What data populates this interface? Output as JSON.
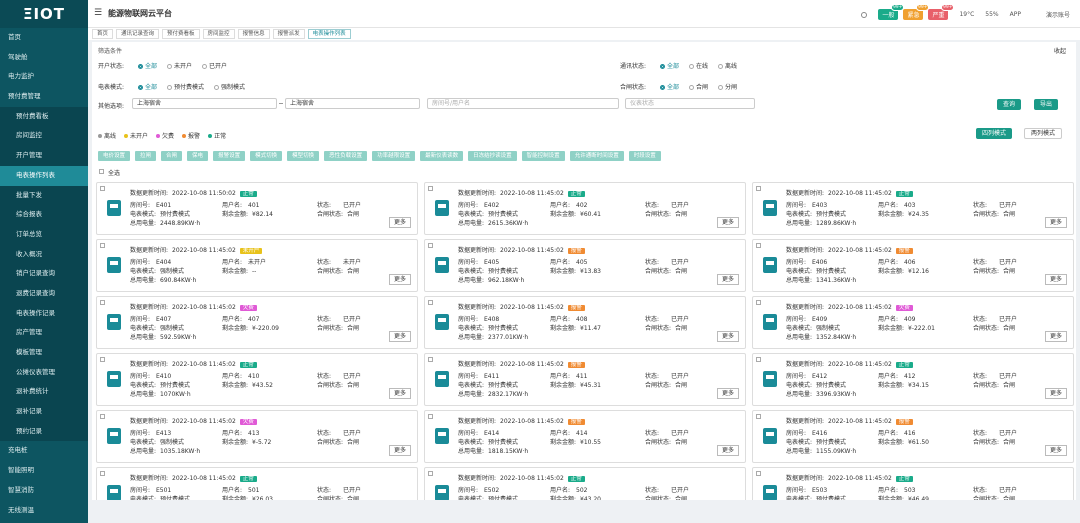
{
  "logo": "ΞIOT",
  "header": {
    "title": "能源物联网云平台",
    "alerts": [
      {
        "label": "一般",
        "count": "99+",
        "color": "#1aab8a"
      },
      {
        "label": "紧急",
        "count": "99+",
        "color": "#f0a030"
      },
      {
        "label": "严重",
        "count": "99+",
        "color": "#e8606a"
      }
    ],
    "weather": "19°C",
    "humidity": "55%",
    "app": "APP",
    "user": "演示账号"
  },
  "sidebar": {
    "items": [
      {
        "label": "首页"
      },
      {
        "label": "驾驶舱"
      },
      {
        "label": "电力监护"
      },
      {
        "label": "预付费管理",
        "children": [
          {
            "label": "预付费看板"
          },
          {
            "label": "房间监控"
          },
          {
            "label": "开户管理"
          },
          {
            "label": "电表操作列表",
            "active": true
          },
          {
            "label": "批量下发"
          },
          {
            "label": "综合报表"
          },
          {
            "label": "订单总览"
          },
          {
            "label": "收入概况"
          },
          {
            "label": "销户记录查询"
          },
          {
            "label": "退费记录查询"
          },
          {
            "label": "电表操作记录"
          },
          {
            "label": "房产管理"
          },
          {
            "label": "模板管理"
          },
          {
            "label": "公摊仪表管理"
          },
          {
            "label": "退补费统计"
          },
          {
            "label": "退补记录"
          },
          {
            "label": "预约记录"
          }
        ]
      },
      {
        "label": "充电桩"
      },
      {
        "label": "智能照明"
      },
      {
        "label": "智慧消防"
      },
      {
        "label": "无线测温"
      }
    ]
  },
  "tabs": [
    {
      "label": "首页"
    },
    {
      "label": "通讯记录查询"
    },
    {
      "label": "预付费看板"
    },
    {
      "label": "房间监控"
    },
    {
      "label": "报警信息"
    },
    {
      "label": "报警派发"
    },
    {
      "label": "电表操作列表",
      "active": true
    }
  ],
  "filters": {
    "title": "筛选条件",
    "collapse": "收起",
    "rows": [
      {
        "label": "开户状态:",
        "options": [
          "全部",
          "未开户",
          "已开户"
        ]
      },
      {
        "label": "通讯状态:",
        "options": [
          "全部",
          "在线",
          "离线"
        ]
      },
      {
        "label": "电表模式:",
        "options": [
          "全部",
          "预付费模式",
          "强制模式"
        ]
      },
      {
        "label": "合闸状态:",
        "options": [
          "全部",
          "合闸",
          "分闸"
        ]
      }
    ],
    "other_label": "其他选项:",
    "select1": "上海宿舍",
    "select2": "上海宿舍",
    "search_placeholder": "房间号/用户名",
    "status_placeholder": "仪表状态",
    "query": "查询",
    "export": "导出"
  },
  "legend": [
    {
      "label": "离线",
      "color": "#9a9a9a"
    },
    {
      "label": "未开户",
      "color": "#e8c21a"
    },
    {
      "label": "欠费",
      "color": "#e05ad6"
    },
    {
      "label": "报警",
      "color": "#f08b32"
    },
    {
      "label": "正常",
      "color": "#1aab8a"
    }
  ],
  "view_modes": [
    "四列模式",
    "两列模式"
  ],
  "actions": [
    "电价设置",
    "拉闸",
    "合闸",
    "保电",
    "报警设置",
    "模式切换",
    "模型切换",
    "恶性负载设置",
    "功率越限设置",
    "最新仪表读数",
    "日冻结抄读设置",
    "智能控制设置",
    "允许通断时间设置",
    "时段设置"
  ],
  "select_all": "全选",
  "card_labels": {
    "time": "数据更新时间:",
    "room": "房间号:",
    "user": "用户名:",
    "state": "状态:",
    "mode": "电表模式:",
    "balance": "剩余金额:",
    "switch": "合闸状态:",
    "total": "总用电量:",
    "more": "更多"
  },
  "cards": [
    {
      "time": "2022-10-08 11:50:02",
      "status": "正常",
      "room": "E401",
      "user": "401",
      "state": "已开户",
      "mode": "预付费模式",
      "balance": "¥82.14",
      "switch": "合闸",
      "total": "2448.89KW·h"
    },
    {
      "time": "2022-10-08 11:45:02",
      "status": "正常",
      "room": "E402",
      "user": "402",
      "state": "已开户",
      "mode": "预付费模式",
      "balance": "¥60.41",
      "switch": "合闸",
      "total": "2615.36KW·h"
    },
    {
      "time": "2022-10-08 11:45:02",
      "status": "正常",
      "room": "E403",
      "user": "403",
      "state": "已开户",
      "mode": "预付费模式",
      "balance": "¥24.35",
      "switch": "合闸",
      "total": "1289.86KW·h"
    },
    {
      "time": "2022-10-08 11:45:02",
      "status": "未开户",
      "room": "E404",
      "user": "未开户",
      "state": "未开户",
      "mode": "强制模式",
      "balance": "--",
      "switch": "合闸",
      "total": "690.84KW·h"
    },
    {
      "time": "2022-10-08 11:45:02",
      "status": "报警",
      "room": "E405",
      "user": "405",
      "state": "已开户",
      "mode": "预付费模式",
      "balance": "¥13.83",
      "switch": "合闸",
      "total": "962.18KW·h"
    },
    {
      "time": "2022-10-08 11:45:02",
      "status": "报警",
      "room": "E406",
      "user": "406",
      "state": "已开户",
      "mode": "预付费模式",
      "balance": "¥12.16",
      "switch": "合闸",
      "total": "1341.36KW·h"
    },
    {
      "time": "2022-10-08 11:45:02",
      "status": "欠费",
      "room": "E407",
      "user": "407",
      "state": "已开户",
      "mode": "强制模式",
      "balance": "¥-220.09",
      "switch": "合闸",
      "total": "592.59KW·h"
    },
    {
      "time": "2022-10-08 11:45:02",
      "status": "报警",
      "room": "E408",
      "user": "408",
      "state": "已开户",
      "mode": "预付费模式",
      "balance": "¥11.47",
      "switch": "合闸",
      "total": "2377.01KW·h"
    },
    {
      "time": "2022-10-08 11:45:02",
      "status": "欠费",
      "room": "E409",
      "user": "409",
      "state": "已开户",
      "mode": "强制模式",
      "balance": "¥-222.01",
      "switch": "合闸",
      "total": "1352.84KW·h"
    },
    {
      "time": "2022-10-08 11:45:02",
      "status": "正常",
      "room": "E410",
      "user": "410",
      "state": "已开户",
      "mode": "预付费模式",
      "balance": "¥43.52",
      "switch": "合闸",
      "total": "1070KW·h"
    },
    {
      "time": "2022-10-08 11:45:02",
      "status": "报警",
      "room": "E411",
      "user": "411",
      "state": "已开户",
      "mode": "预付费模式",
      "balance": "¥45.31",
      "switch": "合闸",
      "total": "2832.17KW·h"
    },
    {
      "time": "2022-10-08 11:45:02",
      "status": "正常",
      "room": "E412",
      "user": "412",
      "state": "已开户",
      "mode": "预付费模式",
      "balance": "¥34.15",
      "switch": "合闸",
      "total": "3396.93KW·h"
    },
    {
      "time": "2022-10-08 11:45:02",
      "status": "欠费",
      "room": "E413",
      "user": "413",
      "state": "已开户",
      "mode": "强制模式",
      "balance": "¥-5.72",
      "switch": "合闸",
      "total": "1035.18KW·h"
    },
    {
      "time": "2022-10-08 11:45:02",
      "status": "报警",
      "room": "E414",
      "user": "414",
      "state": "已开户",
      "mode": "预付费模式",
      "balance": "¥10.55",
      "switch": "合闸",
      "total": "1818.15KW·h"
    },
    {
      "time": "2022-10-08 11:45:02",
      "status": "报警",
      "room": "E416",
      "user": "416",
      "state": "已开户",
      "mode": "预付费模式",
      "balance": "¥61.50",
      "switch": "合闸",
      "total": "1155.09KW·h"
    },
    {
      "time": "2022-10-08 11:45:02",
      "status": "正常",
      "room": "E501",
      "user": "501",
      "state": "已开户",
      "mode": "预付费模式",
      "balance": "¥26.03",
      "switch": "合闸"
    },
    {
      "time": "2022-10-08 11:45:02",
      "status": "正常",
      "room": "E502",
      "user": "502",
      "state": "已开户",
      "mode": "预付费模式",
      "balance": "¥43.20",
      "switch": "合闸"
    },
    {
      "time": "2022-10-08 11:45:02",
      "status": "正常",
      "room": "E503",
      "user": "503",
      "state": "已开户",
      "mode": "预付费模式",
      "balance": "¥46.49",
      "switch": "合闸"
    }
  ]
}
